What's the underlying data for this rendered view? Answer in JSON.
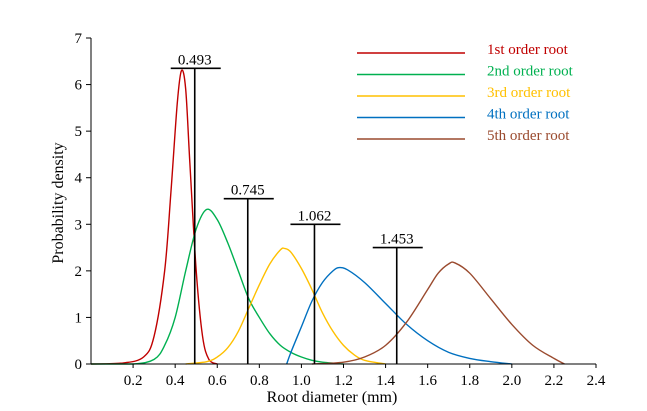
{
  "chart_data": {
    "type": "line",
    "xlabel": "Root diameter (mm)",
    "ylabel": "Probability density",
    "xlim": [
      0,
      2.4
    ],
    "ylim": [
      0,
      7
    ],
    "x_ticks": [
      "0.2",
      "0.4",
      "0.6",
      "0.8",
      "1.0",
      "1.2",
      "1.4",
      "1.6",
      "1.8",
      "2.0",
      "2.2",
      "2.4"
    ],
    "y_ticks": [
      "0",
      "1",
      "2",
      "3",
      "4",
      "5",
      "6",
      "7"
    ],
    "legend_position": "top-right",
    "series": [
      {
        "name": "1st order root",
        "color": "#c00000",
        "points": [
          [
            0.0,
            0.0
          ],
          [
            0.15,
            0.02
          ],
          [
            0.25,
            0.15
          ],
          [
            0.3,
            0.6
          ],
          [
            0.35,
            2.0
          ],
          [
            0.38,
            3.7
          ],
          [
            0.41,
            5.6
          ],
          [
            0.43,
            6.3
          ],
          [
            0.45,
            5.9
          ],
          [
            0.47,
            4.3
          ],
          [
            0.5,
            2.0
          ],
          [
            0.53,
            0.6
          ],
          [
            0.56,
            0.1
          ],
          [
            0.6,
            0.0
          ]
        ]
      },
      {
        "name": "2nd order root",
        "color": "#00b050",
        "points": [
          [
            0.0,
            0.0
          ],
          [
            0.2,
            0.0
          ],
          [
            0.3,
            0.1
          ],
          [
            0.35,
            0.4
          ],
          [
            0.4,
            1.0
          ],
          [
            0.45,
            2.0
          ],
          [
            0.5,
            2.9
          ],
          [
            0.55,
            3.32
          ],
          [
            0.6,
            3.1
          ],
          [
            0.65,
            2.6
          ],
          [
            0.7,
            2.0
          ],
          [
            0.75,
            1.4
          ],
          [
            0.8,
            1.0
          ],
          [
            0.85,
            0.65
          ],
          [
            0.9,
            0.4
          ],
          [
            0.95,
            0.25
          ],
          [
            1.0,
            0.15
          ],
          [
            1.05,
            0.08
          ],
          [
            1.1,
            0.04
          ],
          [
            1.2,
            0.0
          ]
        ]
      },
      {
        "name": "3rd order root",
        "color": "#ffc000",
        "points": [
          [
            0.45,
            0.0
          ],
          [
            0.55,
            0.05
          ],
          [
            0.6,
            0.15
          ],
          [
            0.65,
            0.35
          ],
          [
            0.7,
            0.7
          ],
          [
            0.75,
            1.2
          ],
          [
            0.8,
            1.7
          ],
          [
            0.85,
            2.15
          ],
          [
            0.9,
            2.45
          ],
          [
            0.92,
            2.48
          ],
          [
            0.95,
            2.4
          ],
          [
            1.0,
            2.05
          ],
          [
            1.05,
            1.6
          ],
          [
            1.1,
            1.1
          ],
          [
            1.15,
            0.7
          ],
          [
            1.2,
            0.4
          ],
          [
            1.25,
            0.2
          ],
          [
            1.3,
            0.08
          ],
          [
            1.4,
            0.0
          ]
        ]
      },
      {
        "name": "4th order root",
        "color": "#0070c0",
        "points": [
          [
            0.93,
            0.0
          ],
          [
            0.95,
            0.25
          ],
          [
            1.0,
            0.8
          ],
          [
            1.05,
            1.35
          ],
          [
            1.1,
            1.75
          ],
          [
            1.15,
            2.0
          ],
          [
            1.18,
            2.07
          ],
          [
            1.22,
            2.02
          ],
          [
            1.3,
            1.75
          ],
          [
            1.4,
            1.3
          ],
          [
            1.5,
            0.85
          ],
          [
            1.6,
            0.5
          ],
          [
            1.7,
            0.25
          ],
          [
            1.8,
            0.12
          ],
          [
            1.9,
            0.05
          ],
          [
            2.0,
            0.0
          ]
        ]
      },
      {
        "name": "5th order root",
        "color": "#9a4a2e",
        "points": [
          [
            1.05,
            0.0
          ],
          [
            1.2,
            0.04
          ],
          [
            1.3,
            0.15
          ],
          [
            1.4,
            0.4
          ],
          [
            1.5,
            0.9
          ],
          [
            1.6,
            1.6
          ],
          [
            1.65,
            1.95
          ],
          [
            1.7,
            2.15
          ],
          [
            1.73,
            2.17
          ],
          [
            1.8,
            1.95
          ],
          [
            1.9,
            1.4
          ],
          [
            2.0,
            0.85
          ],
          [
            2.1,
            0.4
          ],
          [
            2.2,
            0.12
          ],
          [
            2.25,
            0.0
          ]
        ]
      }
    ],
    "markers": [
      {
        "x": 0.493,
        "label": "0.493",
        "y_top": 6.35
      },
      {
        "x": 0.745,
        "label": "0.745",
        "y_top": 3.55
      },
      {
        "x": 1.062,
        "label": "1.062",
        "y_top": 3.0
      },
      {
        "x": 1.453,
        "label": "1.453",
        "y_top": 2.5
      }
    ]
  }
}
